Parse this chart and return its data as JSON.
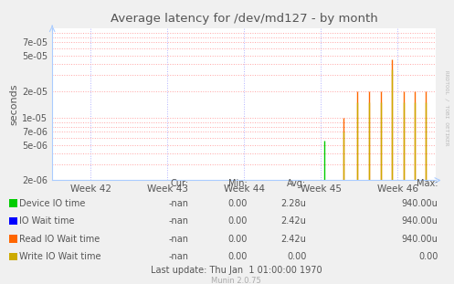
{
  "title": "Average latency for /dev/md127 - by month",
  "ylabel": "seconds",
  "background_color": "#f0f0f0",
  "plot_bg_color": "#ffffff",
  "grid_color": "#ff9999",
  "grid_vcolor": "#aaaaff",
  "week_labels": [
    "Week 42",
    "Week 43",
    "Week 44",
    "Week 45",
    "Week 46"
  ],
  "week_positions": [
    0,
    1,
    2,
    3,
    4
  ],
  "ylim_log": [
    2e-06,
    0.0001
  ],
  "yticks": [
    2e-06,
    5e-06,
    7e-06,
    1e-05,
    2e-05,
    5e-05,
    7e-05
  ],
  "ytick_labels": [
    "2e-06",
    "5e-06",
    "7e-06",
    "1e-05",
    "2e-05",
    "5e-05",
    "7e-05"
  ],
  "series": [
    {
      "name": "Device IO time",
      "color": "#00cc00",
      "spike_x": [
        3.05
      ],
      "spike_y": [
        5.5e-06
      ]
    },
    {
      "name": "IO Wait time",
      "color": "#0000ff",
      "spike_x": [],
      "spike_y": []
    },
    {
      "name": "Read IO Wait time",
      "color": "#ff6600",
      "spike_x": [
        3.3,
        3.48,
        3.63,
        3.78,
        3.93,
        4.08,
        4.22,
        4.37
      ],
      "spike_y": [
        1e-05,
        2e-05,
        2e-05,
        2e-05,
        4.5e-05,
        2e-05,
        2e-05,
        2e-05
      ]
    },
    {
      "name": "Write IO Wait time",
      "color": "#ccaa00",
      "spike_x": [
        3.3,
        3.48,
        3.63,
        3.78,
        3.93,
        4.08,
        4.22,
        4.37
      ],
      "spike_y": [
        7e-06,
        1.5e-05,
        1.5e-05,
        1.5e-05,
        3.5e-05,
        1.5e-05,
        1.5e-05,
        1.5e-05
      ]
    }
  ],
  "legend_entries": [
    {
      "label": "Device IO time",
      "color": "#00cc00",
      "cur": "-nan",
      "min": "0.00",
      "avg": "2.28u",
      "max": "940.00u"
    },
    {
      "label": "IO Wait time",
      "color": "#0000ff",
      "cur": "-nan",
      "min": "0.00",
      "avg": "2.42u",
      "max": "940.00u"
    },
    {
      "label": "Read IO Wait time",
      "color": "#ff6600",
      "cur": "-nan",
      "min": "0.00",
      "avg": "2.42u",
      "max": "940.00u"
    },
    {
      "label": "Write IO Wait time",
      "color": "#ccaa00",
      "cur": "-nan",
      "min": "0.00",
      "avg": "0.00",
      "max": "0.00"
    }
  ],
  "footer": "Last update: Thu Jan  1 01:00:00 1970",
  "munin_version": "Munin 2.0.75",
  "rrdtool_label": "RRDTOOL / TOBI OETIKER",
  "title_color": "#555555",
  "text_color": "#555555",
  "label_color": "#777777",
  "spine_color": "#aaaaaa"
}
